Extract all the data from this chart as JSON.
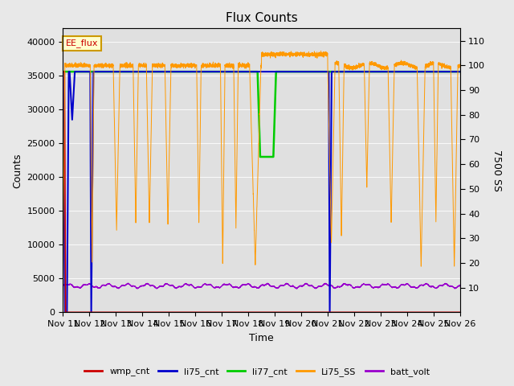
{
  "title": "Flux Counts",
  "xlabel": "Time",
  "ylabel_left": "Counts",
  "ylabel_right": "7500 SS",
  "annotation": "EE_flux",
  "x_start": 11,
  "x_end": 26,
  "x_ticks": [
    11,
    12,
    13,
    14,
    15,
    16,
    17,
    18,
    19,
    20,
    21,
    22,
    23,
    24,
    25,
    26
  ],
  "x_tick_labels": [
    "Nov 11",
    "Nov 12",
    "Nov 13",
    "Nov 14",
    "Nov 15",
    "Nov 16",
    "Nov 17",
    "Nov 18",
    "Nov 19",
    "Nov 20",
    "Nov 21",
    "Nov 22",
    "Nov 23",
    "Nov 24",
    "Nov 25",
    "Nov 26"
  ],
  "ylim_left": [
    0,
    42000
  ],
  "ylim_right": [
    0,
    115
  ],
  "yticks_left": [
    0,
    5000,
    10000,
    15000,
    20000,
    25000,
    30000,
    35000,
    40000
  ],
  "yticks_right": [
    10,
    20,
    30,
    40,
    50,
    60,
    70,
    80,
    90,
    100,
    110
  ],
  "bg_color": "#e8e8e8",
  "plot_bg_color": "#e0e0e0",
  "colors": {
    "wmp_cnt": "#cc0000",
    "li75_cnt": "#0000cc",
    "li77_cnt": "#00cc00",
    "Li75_SS": "#ff9900",
    "batt_volt": "#9900cc"
  },
  "legend_entries": [
    "wmp_cnt",
    "li75_cnt",
    "li77_cnt",
    "Li75_SS",
    "batt_volt"
  ]
}
